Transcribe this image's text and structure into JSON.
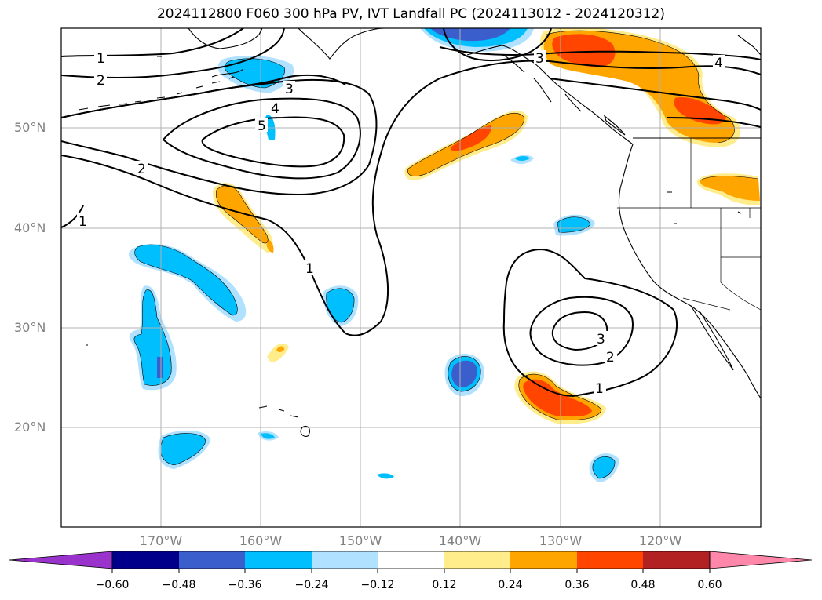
{
  "title": "2024112800 F060 300 hPa PV, IVT Landfall PC (2024113012 - 2024120312)",
  "map": {
    "lat_ticks": [
      "50°N",
      "40°N",
      "30°N",
      "20°N"
    ],
    "lon_ticks": [
      "170°W",
      "160°W",
      "150°W",
      "140°W",
      "130°W",
      "120°W"
    ],
    "contour_labels": [
      "1",
      "2",
      "3",
      "4",
      "5",
      "2",
      "1",
      "1",
      "3",
      "2",
      "1",
      "3",
      "4"
    ]
  },
  "colorbar": {
    "ticks": [
      "−0.60",
      "−0.48",
      "−0.36",
      "−0.24",
      "−0.12",
      "0.12",
      "0.24",
      "0.36",
      "0.48",
      "0.60"
    ],
    "colors": [
      "#9933cc",
      "#00008b",
      "#3a5fcd",
      "#00bfff",
      "#b0e2ff",
      "#ffffff",
      "#ffec8b",
      "#ffa500",
      "#ff4500",
      "#b22222",
      "#ff88aa"
    ]
  },
  "colors": {
    "neg_strong": "#3a5fcd",
    "neg_mid": "#00bfff",
    "neg_weak": "#b0e2ff",
    "pos_weak": "#ffec8b",
    "pos_mid": "#ffa500",
    "pos_strong": "#ff4500",
    "contour": "#000000",
    "grid": "#b0b0b0"
  }
}
